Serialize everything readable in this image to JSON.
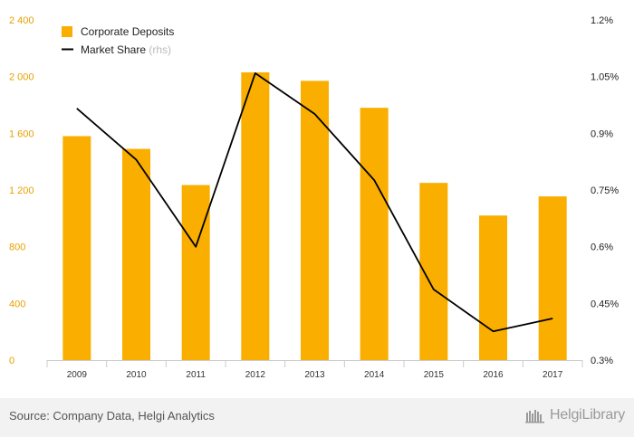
{
  "chart_data": {
    "type": "bar",
    "categories": [
      "2009",
      "2010",
      "2011",
      "2012",
      "2013",
      "2014",
      "2015",
      "2016",
      "2017"
    ],
    "series": [
      {
        "name": "Corporate Deposits",
        "type": "bar",
        "axis": "left",
        "color": "#f9ae00",
        "values": [
          1580,
          1490,
          1235,
          2030,
          1970,
          1780,
          1250,
          1020,
          1155
        ]
      },
      {
        "name": "Market Share",
        "name_suffix": "(rhs)",
        "type": "line",
        "axis": "right",
        "color": "#000000",
        "values": [
          0.966,
          0.83,
          0.6,
          1.059,
          0.951,
          0.776,
          0.487,
          0.376,
          0.41
        ]
      }
    ],
    "y_left": {
      "ylim": [
        0,
        2400
      ],
      "ticks": [
        0,
        400,
        800,
        1200,
        1600,
        2000,
        2400
      ],
      "tick_labels": [
        "0",
        "400",
        "800",
        "1 200",
        "1 600",
        "2 000",
        "2 400"
      ]
    },
    "y_right": {
      "ylim": [
        0.3,
        1.2
      ],
      "ticks": [
        0.3,
        0.45,
        0.6,
        0.75,
        0.9,
        1.05,
        1.2
      ],
      "tick_labels": [
        "0.3%",
        "0.45%",
        "0.6%",
        "0.75%",
        "0.9%",
        "1.05%",
        "1.2%"
      ]
    },
    "legend_position": "top-left",
    "grid": false
  },
  "footer": {
    "source": "Source: Company Data, Helgi Analytics",
    "brand": "HelgiLibrary"
  }
}
